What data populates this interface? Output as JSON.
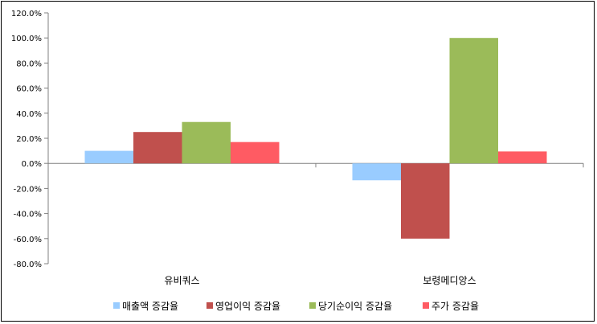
{
  "chart_data": {
    "type": "bar",
    "title": "",
    "xlabel": "",
    "ylabel": "",
    "categories": [
      "유비쿼스",
      "보령메디앙스"
    ],
    "series": [
      {
        "name": "매출액 증감율",
        "color": "#99ccff",
        "values": [
          10.0,
          -13.5
        ]
      },
      {
        "name": "영업이익 증감율",
        "color": "#c0504d",
        "values": [
          25.0,
          -60.0
        ]
      },
      {
        "name": "당기순이익 증감율",
        "color": "#9bbb59",
        "values": [
          33.0,
          100.0
        ]
      },
      {
        "name": "주가 증감율",
        "color": "#ff5b63",
        "values": [
          17.0,
          9.5
        ]
      }
    ],
    "ylim": [
      -80,
      120
    ],
    "yticks": [
      120,
      100,
      80,
      60,
      40,
      20,
      0,
      -20,
      -40,
      -60,
      -80
    ],
    "ytick_labels": [
      "120.0%",
      "100.0%",
      "80.0%",
      "60.0%",
      "40.0%",
      "20.0%",
      "0.0%",
      "-20.0%",
      "-40.0%",
      "-60.0%",
      "-80.0%"
    ],
    "grid": false,
    "legend_position": "bottom"
  }
}
